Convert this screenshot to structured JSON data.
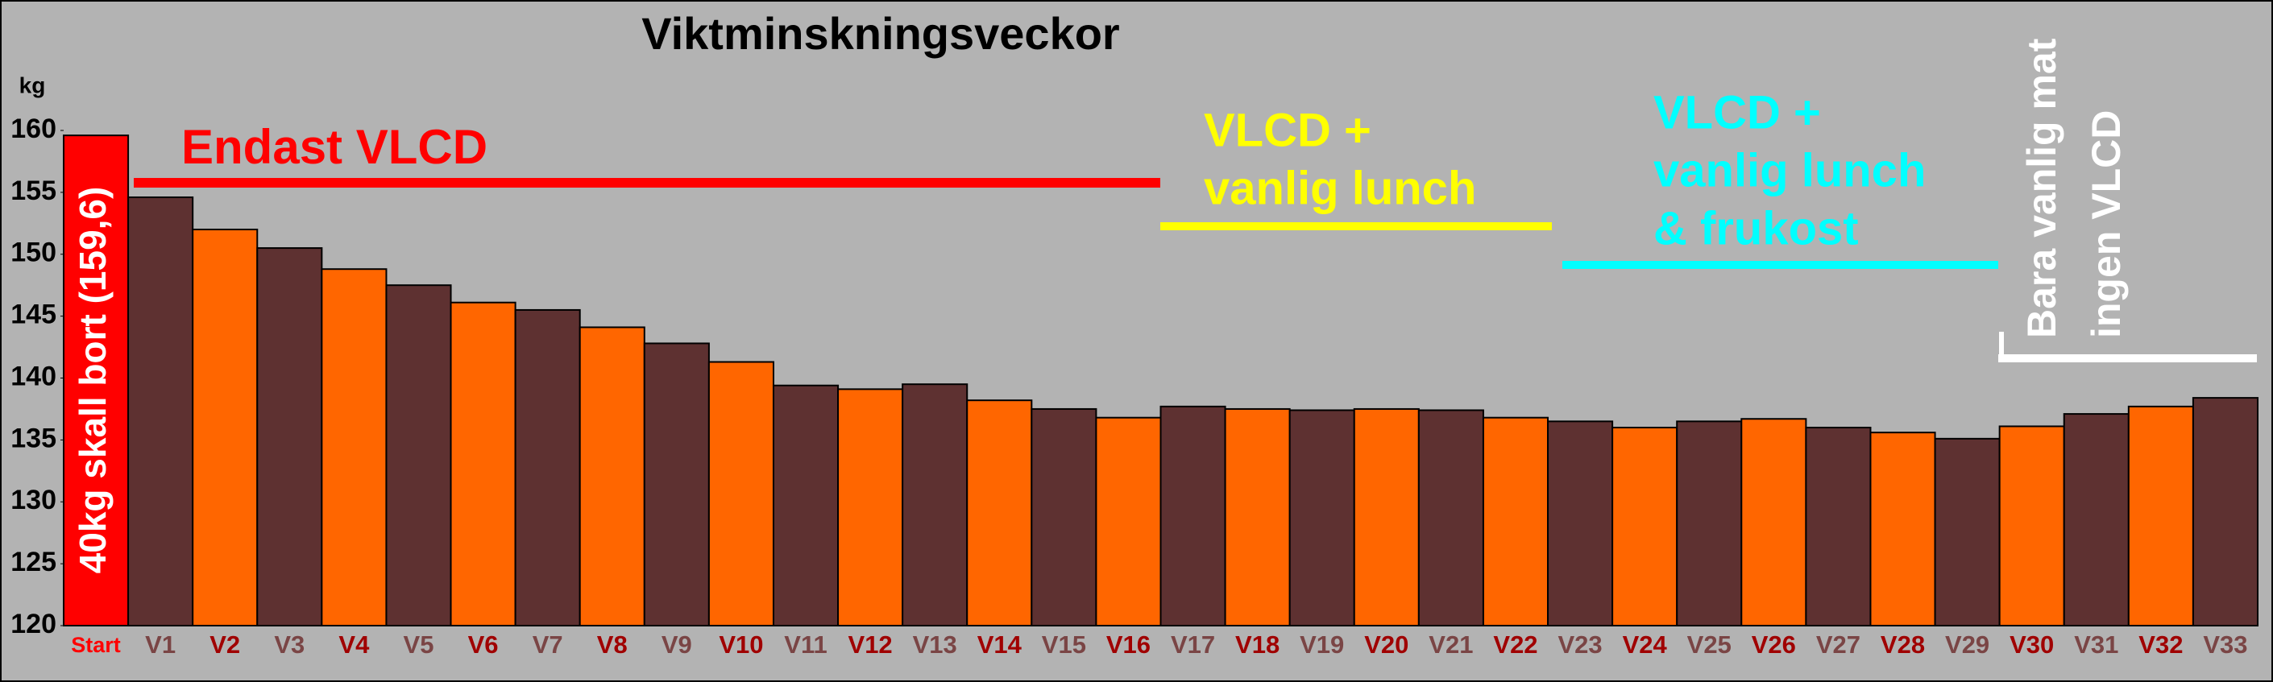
{
  "chart_data": {
    "type": "bar",
    "title": "Viktminskningsveckor",
    "y_label": "kg",
    "categories": [
      "Start",
      "V1",
      "V2",
      "V3",
      "V4",
      "V5",
      "V6",
      "V7",
      "V8",
      "V9",
      "V10",
      "V11",
      "V12",
      "V13",
      "V14",
      "V15",
      "V16",
      "V17",
      "V18",
      "V19",
      "V20",
      "V21",
      "V22",
      "V23",
      "V24",
      "V25",
      "V26",
      "V27",
      "V28",
      "V29",
      "V30",
      "V31",
      "V32",
      "V33"
    ],
    "values": [
      159.6,
      154.6,
      152.0,
      150.5,
      148.8,
      147.5,
      146.1,
      145.5,
      144.1,
      142.8,
      141.3,
      139.4,
      139.1,
      139.5,
      138.2,
      137.5,
      136.8,
      137.7,
      137.5,
      137.4,
      137.5,
      137.4,
      136.8,
      136.5,
      136.0,
      136.5,
      136.7,
      136.0,
      135.6,
      135.1,
      136.1,
      137.1,
      137.7,
      138.4
    ],
    "colors": [
      "#ff0000",
      "#5e3131",
      "#ff6600",
      "#5e3131",
      "#ff6600",
      "#5e3131",
      "#ff6600",
      "#5e3131",
      "#ff6600",
      "#5e3131",
      "#ff6600",
      "#5e3131",
      "#ff6600",
      "#5e3131",
      "#ff6600",
      "#5e3131",
      "#ff6600",
      "#5e3131",
      "#ff6600",
      "#5e3131",
      "#ff6600",
      "#5e3131",
      "#ff6600",
      "#5e3131",
      "#ff6600",
      "#5e3131",
      "#ff6600",
      "#5e3131",
      "#ff6600",
      "#5e3131",
      "#ff6600",
      "#5e3131",
      "#ff6600",
      "#5e3131"
    ],
    "ylim": [
      120,
      160
    ],
    "yticks": [
      120,
      125,
      130,
      135,
      140,
      145,
      150,
      155,
      160
    ],
    "start_note": "40kg skall bort  (159,6)",
    "annotations": [
      {
        "lines": [
          "Endast VLCD"
        ],
        "color": "#ff0000"
      },
      {
        "lines": [
          "VLCD +",
          "vanlig lunch"
        ],
        "color": "#ffff00"
      },
      {
        "lines": [
          "VLCD +",
          "vanlig lunch",
          "& frukost"
        ],
        "color": "#00ffff"
      },
      {
        "lines": [
          "Bara vanlig mat",
          "ingen VLCD"
        ],
        "color": "#ffffff"
      }
    ]
  }
}
